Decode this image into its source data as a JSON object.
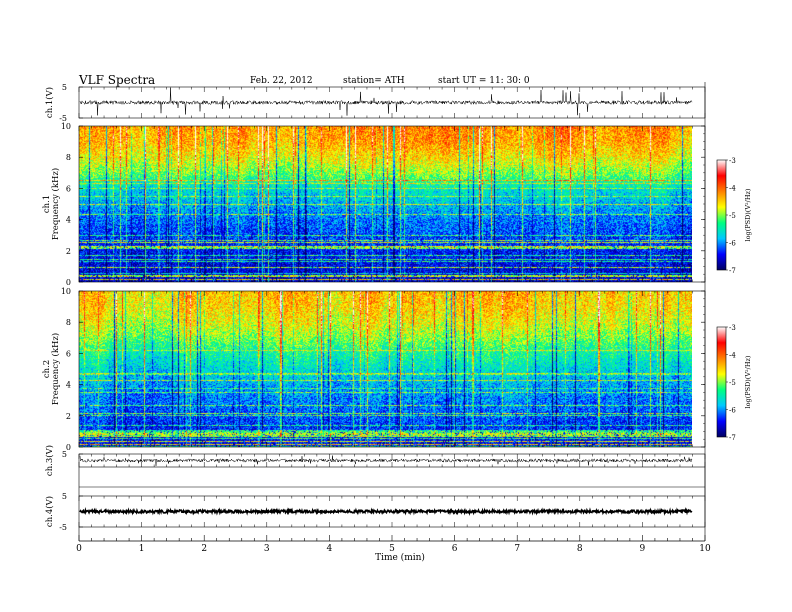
{
  "header": {
    "title": "VLF  Spectra",
    "date": "Feb. 22, 2012",
    "station": "station= ATH",
    "start": "start  UT  =   11: 30: 0"
  },
  "chart_data": [
    {
      "type": "line",
      "name": "ch1-waveform",
      "ylabel": "ch.1(V)",
      "xlim": [
        0,
        10
      ],
      "ylim": [
        -5,
        5
      ],
      "yticks": [
        "5",
        "-5"
      ],
      "baseline": 0
    },
    {
      "type": "heatmap",
      "name": "ch1-spectrogram",
      "ylabel": [
        "ch.1",
        "Frequency  (kHz)"
      ],
      "xlim": [
        0,
        9.8
      ],
      "ylim": [
        0,
        10
      ],
      "yticks": [
        "0",
        "2",
        "4",
        "6",
        "8",
        "10"
      ],
      "colorbar": {
        "label": "log(PSD)(V²/Hz)",
        "range": [
          -7,
          -3
        ],
        "ticks": [
          "-3",
          "-4",
          "-5",
          "-6",
          "-7"
        ],
        "colors": [
          "#000060",
          "#0000ff",
          "#00c8ff",
          "#00ff80",
          "#ffff00",
          "#ff8000",
          "#ff0000",
          "#ffffff"
        ]
      },
      "spectral_profile": [
        [
          0,
          -6.6
        ],
        [
          2,
          -6.4
        ],
        [
          4,
          -6.1
        ],
        [
          6,
          -5.6
        ],
        [
          7,
          -5.0
        ],
        [
          8,
          -4.6
        ],
        [
          9,
          -4.3
        ],
        [
          10,
          -4.2
        ]
      ]
    },
    {
      "type": "heatmap",
      "name": "ch2-spectrogram",
      "ylabel": [
        "ch.2",
        "Frequency  (kHz)"
      ],
      "xlim": [
        0,
        9.8
      ],
      "ylim": [
        0,
        10
      ],
      "yticks": [
        "0",
        "2",
        "4",
        "6",
        "8",
        "10"
      ],
      "colorbar": {
        "label": "log(PSD)(V²/Hz)",
        "range": [
          -7,
          -3
        ],
        "ticks": [
          "-3",
          "-4",
          "-5",
          "-6",
          "-7"
        ],
        "colors": [
          "#000060",
          "#0000ff",
          "#00c8ff",
          "#00ff80",
          "#ffff00",
          "#ff8000",
          "#ff0000",
          "#ffffff"
        ]
      },
      "spectral_profile": [
        [
          0,
          -6.5
        ],
        [
          2,
          -6.2
        ],
        [
          4,
          -5.9
        ],
        [
          6,
          -5.4
        ],
        [
          7,
          -5.0
        ],
        [
          8,
          -4.7
        ],
        [
          9,
          -4.5
        ],
        [
          10,
          -4.4
        ]
      ]
    },
    {
      "type": "line",
      "name": "ch3-waveform",
      "ylabel": "ch.3(V)",
      "xlim": [
        0,
        10
      ],
      "ylim": [
        -5,
        5
      ],
      "yticks": [
        "5"
      ],
      "baseline": 0
    },
    {
      "type": "line",
      "name": "ch4-waveform",
      "ylabel": "ch.4(V)",
      "xlim": [
        0,
        10
      ],
      "ylim": [
        -5,
        5
      ],
      "yticks": [
        "5",
        "-5"
      ],
      "baseline": 0
    }
  ],
  "xaxis": {
    "label": "Time  (min)",
    "ticks": [
      "0",
      "1",
      "2",
      "3",
      "4",
      "5",
      "6",
      "7",
      "8",
      "9",
      "10"
    ]
  }
}
